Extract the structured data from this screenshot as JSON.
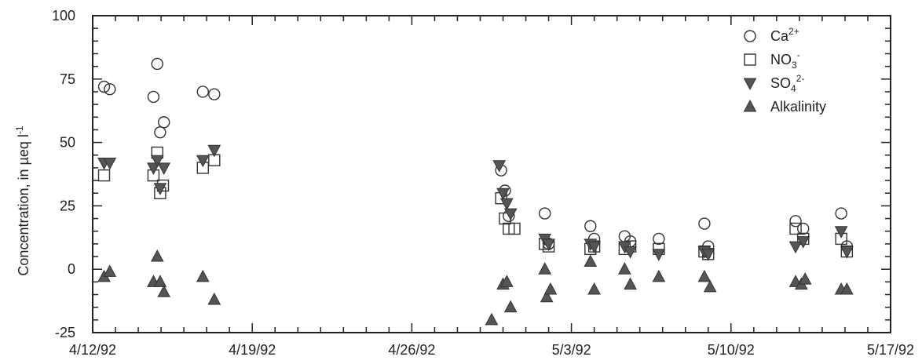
{
  "chart_data": {
    "type": "scatter",
    "title": "",
    "xlabel": "",
    "ylabel": "Concentration, in µeq l",
    "ylabel_superscript": "-1",
    "ylim": [
      -25,
      100
    ],
    "yticks": [
      "-25",
      "0",
      "25",
      "50",
      "75",
      "100"
    ],
    "xlim": [
      "4/12/92",
      "5/17/92"
    ],
    "xticks": [
      "4/12/92",
      "4/19/92",
      "4/26/92",
      "5/3/92",
      "5/10/92",
      "5/17/92"
    ],
    "grid": false,
    "legend_position": "top-right",
    "legend": [
      {
        "base": "Ca",
        "sub": "",
        "sup": "2+",
        "marker": "circle-open"
      },
      {
        "base": "NO",
        "sub": "3",
        "sup": "-",
        "marker": "square-open"
      },
      {
        "base": "SO",
        "sub": "4",
        "sup": "2-",
        "marker": "triangle-down-filled"
      },
      {
        "base": "Alkalinity",
        "sub": "",
        "sup": "",
        "marker": "triangle-up-filled"
      }
    ],
    "series": [
      {
        "name": "Ca2+",
        "marker": "circle-open",
        "points": [
          {
            "x": "1992-04-12T12:00",
            "y": 72
          },
          {
            "x": "1992-04-12T18:00",
            "y": 71
          },
          {
            "x": "1992-04-14T16:00",
            "y": 68
          },
          {
            "x": "1992-04-14T20:00",
            "y": 81
          },
          {
            "x": "1992-04-14T23:00",
            "y": 54
          },
          {
            "x": "1992-04-15T03:00",
            "y": 58
          },
          {
            "x": "1992-04-16T20:00",
            "y": 70
          },
          {
            "x": "1992-04-17T08:00",
            "y": 69
          },
          {
            "x": "1992-04-29T22:00",
            "y": 39
          },
          {
            "x": "1992-04-30T02:00",
            "y": 31
          },
          {
            "x": "1992-04-30T06:00",
            "y": 21
          },
          {
            "x": "1992-05-01T20:00",
            "y": 22
          },
          {
            "x": "1992-05-02T00:00",
            "y": 10
          },
          {
            "x": "1992-05-03T20:00",
            "y": 17
          },
          {
            "x": "1992-05-04T00:00",
            "y": 12
          },
          {
            "x": "1992-05-05T08:00",
            "y": 13
          },
          {
            "x": "1992-05-05T14:00",
            "y": 11
          },
          {
            "x": "1992-05-06T20:00",
            "y": 12
          },
          {
            "x": "1992-05-08T20:00",
            "y": 18
          },
          {
            "x": "1992-05-09T00:00",
            "y": 9
          },
          {
            "x": "1992-05-12T20:00",
            "y": 19
          },
          {
            "x": "1992-05-13T04:00",
            "y": 16
          },
          {
            "x": "1992-05-14T20:00",
            "y": 22
          },
          {
            "x": "1992-05-15T02:00",
            "y": 9
          }
        ]
      },
      {
        "name": "NO3-",
        "marker": "square-open",
        "points": [
          {
            "x": "1992-04-12T12:00",
            "y": 37
          },
          {
            "x": "1992-04-14T16:00",
            "y": 37
          },
          {
            "x": "1992-04-14T20:00",
            "y": 46
          },
          {
            "x": "1992-04-14T23:00",
            "y": 30
          },
          {
            "x": "1992-04-15T02:00",
            "y": 33
          },
          {
            "x": "1992-04-16T20:00",
            "y": 40
          },
          {
            "x": "1992-04-17T08:00",
            "y": 43
          },
          {
            "x": "1992-04-29T22:00",
            "y": 28
          },
          {
            "x": "1992-04-30T02:00",
            "y": 20
          },
          {
            "x": "1992-04-30T06:00",
            "y": 16
          },
          {
            "x": "1992-04-30T12:00",
            "y": 16
          },
          {
            "x": "1992-05-01T20:00",
            "y": 10
          },
          {
            "x": "1992-05-02T00:00",
            "y": 9
          },
          {
            "x": "1992-05-03T20:00",
            "y": 8
          },
          {
            "x": "1992-05-04T00:00",
            "y": 9
          },
          {
            "x": "1992-05-05T08:00",
            "y": 8
          },
          {
            "x": "1992-05-05T14:00",
            "y": 9
          },
          {
            "x": "1992-05-06T20:00",
            "y": 8
          },
          {
            "x": "1992-05-08T20:00",
            "y": 7
          },
          {
            "x": "1992-05-09T00:00",
            "y": 6
          },
          {
            "x": "1992-05-12T20:00",
            "y": 16
          },
          {
            "x": "1992-05-13T04:00",
            "y": 12
          },
          {
            "x": "1992-05-14T20:00",
            "y": 12
          },
          {
            "x": "1992-05-15T02:00",
            "y": 7
          }
        ]
      },
      {
        "name": "SO42-",
        "marker": "triangle-down-filled",
        "points": [
          {
            "x": "1992-04-12T12:00",
            "y": 42
          },
          {
            "x": "1992-04-12T18:00",
            "y": 42
          },
          {
            "x": "1992-04-14T16:00",
            "y": 40
          },
          {
            "x": "1992-04-14T20:00",
            "y": 43
          },
          {
            "x": "1992-04-14T23:00",
            "y": 32
          },
          {
            "x": "1992-04-15T03:00",
            "y": 40
          },
          {
            "x": "1992-04-16T20:00",
            "y": 43
          },
          {
            "x": "1992-04-17T08:00",
            "y": 47
          },
          {
            "x": "1992-04-29T20:00",
            "y": 41
          },
          {
            "x": "1992-04-30T00:00",
            "y": 30
          },
          {
            "x": "1992-04-30T04:00",
            "y": 26
          },
          {
            "x": "1992-04-30T08:00",
            "y": 22
          },
          {
            "x": "1992-05-01T20:00",
            "y": 12
          },
          {
            "x": "1992-05-02T00:00",
            "y": 10
          },
          {
            "x": "1992-05-03T20:00",
            "y": 10
          },
          {
            "x": "1992-05-04T00:00",
            "y": 9
          },
          {
            "x": "1992-05-05T08:00",
            "y": 9
          },
          {
            "x": "1992-05-05T14:00",
            "y": 7
          },
          {
            "x": "1992-05-06T20:00",
            "y": 6
          },
          {
            "x": "1992-05-08T20:00",
            "y": 7
          },
          {
            "x": "1992-05-09T00:00",
            "y": 6
          },
          {
            "x": "1992-05-12T20:00",
            "y": 9
          },
          {
            "x": "1992-05-13T04:00",
            "y": 11
          },
          {
            "x": "1992-05-14T20:00",
            "y": 15
          },
          {
            "x": "1992-05-15T02:00",
            "y": 7
          }
        ]
      },
      {
        "name": "Alkalinity",
        "marker": "triangle-up-filled",
        "points": [
          {
            "x": "1992-04-12T12:00",
            "y": -3
          },
          {
            "x": "1992-04-12T18:00",
            "y": -1
          },
          {
            "x": "1992-04-14T16:00",
            "y": -5
          },
          {
            "x": "1992-04-14T20:00",
            "y": 5
          },
          {
            "x": "1992-04-14T23:00",
            "y": -5
          },
          {
            "x": "1992-04-15T03:00",
            "y": -9
          },
          {
            "x": "1992-04-16T20:00",
            "y": -3
          },
          {
            "x": "1992-04-17T08:00",
            "y": -12
          },
          {
            "x": "1992-04-29T12:00",
            "y": -20
          },
          {
            "x": "1992-04-30T00:00",
            "y": -6
          },
          {
            "x": "1992-04-30T04:00",
            "y": -5
          },
          {
            "x": "1992-04-30T08:00",
            "y": -15
          },
          {
            "x": "1992-05-01T20:00",
            "y": 0
          },
          {
            "x": "1992-05-01T22:00",
            "y": -11
          },
          {
            "x": "1992-05-02T02:00",
            "y": -8
          },
          {
            "x": "1992-05-03T20:00",
            "y": 3
          },
          {
            "x": "1992-05-04T00:00",
            "y": -8
          },
          {
            "x": "1992-05-05T08:00",
            "y": 0
          },
          {
            "x": "1992-05-05T14:00",
            "y": -6
          },
          {
            "x": "1992-05-06T20:00",
            "y": -3
          },
          {
            "x": "1992-05-08T20:00",
            "y": -3
          },
          {
            "x": "1992-05-09T02:00",
            "y": -7
          },
          {
            "x": "1992-05-12T20:00",
            "y": -5
          },
          {
            "x": "1992-05-13T02:00",
            "y": -6
          },
          {
            "x": "1992-05-13T06:00",
            "y": -4
          },
          {
            "x": "1992-05-14T20:00",
            "y": -8
          },
          {
            "x": "1992-05-15T02:00",
            "y": -8
          }
        ]
      }
    ]
  }
}
